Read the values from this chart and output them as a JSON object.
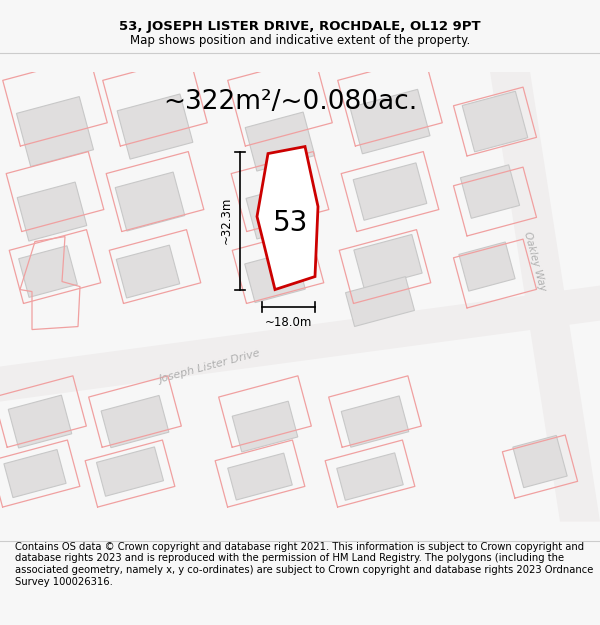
{
  "title": "53, JOSEPH LISTER DRIVE, ROCHDALE, OL12 9PT",
  "subtitle": "Map shows position and indicative extent of the property.",
  "area_label": "~322m²/~0.080ac.",
  "plot_number": "53",
  "dim_width": "~18.0m",
  "dim_height": "~32.3m",
  "footer": "Contains OS data © Crown copyright and database right 2021. This information is subject to Crown copyright and database rights 2023 and is reproduced with the permission of HM Land Registry. The polygons (including the associated geometry, namely x, y co-ordinates) are subject to Crown copyright and database rights 2023 Ordnance Survey 100026316.",
  "bg_color": "#f7f7f7",
  "map_bg": "#ffffff",
  "plot_fill": "#ffffff",
  "plot_edge": "#cc0000",
  "road_label": "Joseph Lister Drive",
  "road2_label": "Oakley Way",
  "title_fontsize": 9.5,
  "subtitle_fontsize": 8.5,
  "area_fontsize": 19,
  "plot_num_fontsize": 20,
  "footer_fontsize": 7.2,
  "building_fill": "#e0dede",
  "building_edge": "#c8c8c8",
  "pink_outline": "#f0a0a0",
  "road_fill": "#f0eeee",
  "road_text_color": "#b0b0b0"
}
